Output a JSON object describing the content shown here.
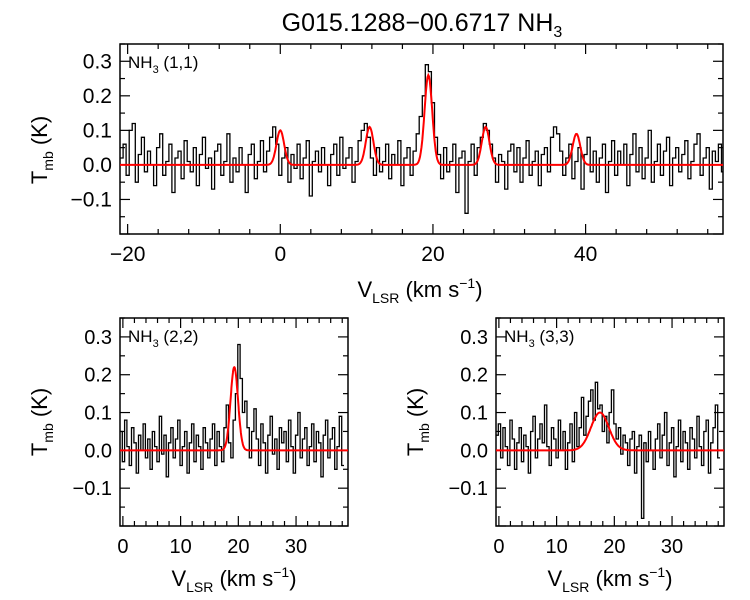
{
  "chart_data": [
    {
      "type": "line",
      "panel": "top",
      "title_main": "G015.1288−00.6717 NH",
      "title_sub": "3",
      "label_main": "NH",
      "label_sub": "3",
      "label_suffix": " (1,1)",
      "xlabel_main": "V",
      "xlabel_sub": "LSR",
      "xlabel_units": " (km s",
      "xlabel_sup": "−1",
      "xlabel_close": ")",
      "ylabel_main": "T",
      "ylabel_sub": "mb",
      "ylabel_units": " (K)",
      "xlim": [
        -21,
        58
      ],
      "ylim": [
        -0.2,
        0.35
      ],
      "xticks": [
        -20,
        0,
        20,
        40
      ],
      "xtick_labels": [
        "−20",
        "0",
        "20",
        "40"
      ],
      "yticks": [
        -0.1,
        0.0,
        0.1,
        0.2,
        0.3
      ],
      "ytick_labels": [
        "−0.1",
        "0.0",
        "0.1",
        "0.2",
        "0.3"
      ],
      "series": [
        {
          "name": "spectrum",
          "color": "#000000",
          "style": "step",
          "x0": -21,
          "dx": 0.4,
          "values": [
            0.02,
            0.06,
            -0.03,
            0.1,
            0.12,
            -0.05,
            0.03,
            0.08,
            -0.02,
            0.04,
            0.0,
            -0.06,
            0.05,
            0.09,
            -0.03,
            0.01,
            0.06,
            -0.08,
            0.02,
            0.04,
            -0.04,
            0.07,
            0.01,
            -0.02,
            0.05,
            -0.06,
            0.03,
            0.08,
            -0.01,
            0.02,
            -0.07,
            0.04,
            0.06,
            -0.03,
            0.01,
            0.09,
            -0.05,
            0.02,
            -0.02,
            0.05,
            0.0,
            -0.08,
            0.03,
            0.06,
            -0.04,
            0.01,
            0.07,
            -0.02,
            0.04,
            0.08,
            0.11,
            0.06,
            -0.03,
            0.02,
            0.05,
            -0.05,
            0.03,
            -0.01,
            0.06,
            -0.04,
            0.02,
            0.07,
            -0.09,
            0.01,
            0.04,
            -0.02,
            0.05,
            0.0,
            -0.06,
            0.03,
            0.06,
            -0.03,
            0.08,
            -0.01,
            0.02,
            0.05,
            -0.05,
            0.01,
            0.07,
            0.1,
            0.12,
            0.08,
            0.02,
            -0.03,
            0.05,
            -0.02,
            0.01,
            0.06,
            -0.04,
            0.03,
            0.0,
            0.07,
            -0.06,
            0.02,
            0.05,
            -0.03,
            0.04,
            0.09,
            0.14,
            0.2,
            0.29,
            0.27,
            0.18,
            0.08,
            0.03,
            -0.04,
            0.05,
            -0.02,
            0.01,
            0.06,
            -0.08,
            0.02,
            0.04,
            -0.14,
            0.01,
            0.06,
            -0.03,
            0.05,
            0.08,
            0.12,
            0.1,
            0.06,
            0.02,
            -0.05,
            0.03,
            0.01,
            -0.07,
            0.04,
            0.06,
            -0.02,
            0.05,
            -0.05,
            0.02,
            0.07,
            -0.03,
            0.01,
            0.04,
            -0.06,
            0.03,
            0.05,
            -0.02,
            0.08,
            0.11,
            0.09,
            0.04,
            -0.03,
            0.02,
            0.06,
            -0.04,
            0.01,
            0.05,
            -0.07,
            0.03,
            0.08,
            -0.02,
            0.04,
            -0.05,
            0.02,
            0.06,
            -0.08,
            0.01,
            0.07,
            -0.03,
            0.04,
            0.0,
            0.06,
            -0.06,
            0.03,
            0.09,
            -0.02,
            0.05,
            -0.04,
            0.02,
            0.1,
            -0.05,
            0.01,
            0.06,
            -0.03,
            0.04,
            0.08,
            -0.06,
            0.02,
            0.05,
            -0.02,
            0.03,
            0.07,
            -0.04,
            0.01,
            0.06,
            0.09,
            -0.03,
            0.02,
            0.05,
            -0.07,
            0.04,
            0.01,
            0.06,
            -0.02
          ]
        },
        {
          "name": "gaussian fit",
          "color": "#ff0000",
          "style": "line",
          "peaks": [
            {
              "center": 0.0,
              "amp": 0.1,
              "sigma": 0.5
            },
            {
              "center": 11.7,
              "amp": 0.11,
              "sigma": 0.5
            },
            {
              "center": 19.4,
              "amp": 0.26,
              "sigma": 0.5
            },
            {
              "center": 26.9,
              "amp": 0.11,
              "sigma": 0.5
            },
            {
              "center": 38.8,
              "amp": 0.09,
              "sigma": 0.5
            }
          ]
        }
      ]
    },
    {
      "type": "line",
      "panel": "bottom-left",
      "label_main": "NH",
      "label_sub": "3",
      "label_suffix": " (2,2)",
      "xlabel_main": "V",
      "xlabel_sub": "LSR",
      "xlabel_units": " (km s",
      "xlabel_sup": "−1",
      "xlabel_close": ")",
      "ylabel_main": "T",
      "ylabel_sub": "mb",
      "ylabel_units": " (K)",
      "xlim": [
        -0.5,
        39
      ],
      "ylim": [
        -0.2,
        0.35
      ],
      "xticks": [
        0,
        10,
        20,
        30
      ],
      "xtick_labels": [
        "0",
        "10",
        "20",
        "30"
      ],
      "yticks": [
        -0.1,
        0.0,
        0.1,
        0.2,
        0.3
      ],
      "ytick_labels": [
        "−0.1",
        "0.0",
        "0.1",
        "0.2",
        "0.3"
      ],
      "series": [
        {
          "name": "spectrum",
          "color": "#000000",
          "style": "step",
          "x0": -0.5,
          "dx": 0.4,
          "values": [
            0.05,
            -0.03,
            0.08,
            0.01,
            -0.04,
            0.06,
            0.02,
            -0.06,
            0.04,
            0.0,
            0.07,
            -0.02,
            0.03,
            -0.05,
            0.05,
            0.01,
            -0.03,
            0.09,
            -0.01,
            0.04,
            -0.07,
            0.02,
            0.06,
            -0.02,
            0.03,
            0.08,
            -0.04,
            0.01,
            0.05,
            -0.06,
            0.02,
            0.07,
            -0.03,
            0.04,
            0.01,
            -0.05,
            0.06,
            0.02,
            -0.02,
            0.03,
            0.07,
            -0.04,
            0.05,
            0.01,
            -0.03,
            0.06,
            0.12,
            0.02,
            -0.02,
            0.08,
            0.15,
            0.28,
            0.19,
            0.1,
            0.13,
            0.06,
            -0.02,
            0.05,
            0.11,
            0.03,
            -0.04,
            0.07,
            0.02,
            -0.06,
            0.04,
            0.09,
            -0.01,
            0.03,
            -0.05,
            0.06,
            0.02,
            0.05,
            -0.03,
            0.08,
            0.01,
            -0.06,
            0.04,
            0.1,
            -0.02,
            0.03,
            0.06,
            -0.04,
            0.01,
            0.07,
            -0.03,
            0.05,
            0.02,
            -0.07,
            0.04,
            0.08,
            -0.02,
            0.03,
            0.06,
            -0.05,
            0.01,
            0.09,
            -0.04
          ]
        },
        {
          "name": "gaussian fit",
          "color": "#ff0000",
          "style": "line",
          "peaks": [
            {
              "center": 19.3,
              "amp": 0.22,
              "sigma": 0.65
            }
          ]
        }
      ]
    },
    {
      "type": "line",
      "panel": "bottom-right",
      "label_main": "NH",
      "label_sub": "3",
      "label_suffix": " (3,3)",
      "xlabel_main": "V",
      "xlabel_sub": "LSR",
      "xlabel_units": " (km s",
      "xlabel_sup": "−1",
      "xlabel_close": ")",
      "ylabel_main": "T",
      "ylabel_sub": "mb",
      "ylabel_units": " (K)",
      "xlim": [
        -0.5,
        39
      ],
      "ylim": [
        -0.2,
        0.35
      ],
      "xticks": [
        0,
        10,
        20,
        30
      ],
      "xtick_labels": [
        "0",
        "10",
        "20",
        "30"
      ],
      "yticks": [
        -0.1,
        0.0,
        0.1,
        0.2,
        0.3
      ],
      "ytick_labels": [
        "−0.1",
        "0.0",
        "0.1",
        "0.2",
        "0.3"
      ],
      "series": [
        {
          "name": "spectrum",
          "color": "#000000",
          "style": "step",
          "x0": -0.5,
          "dx": 0.4,
          "values": [
            0.04,
            0.07,
            -0.02,
            0.06,
            0.01,
            -0.04,
            0.08,
            0.03,
            -0.05,
            0.02,
            0.06,
            -0.03,
            0.04,
            0.01,
            -0.06,
            0.05,
            0.09,
            -0.02,
            0.03,
            0.07,
            0.02,
            0.12,
            0.01,
            -0.04,
            0.06,
            0.03,
            -0.02,
            0.08,
            0.0,
            0.05,
            -0.05,
            0.02,
            0.07,
            -0.03,
            0.1,
            0.01,
            0.06,
            0.14,
            0.04,
            0.09,
            0.13,
            0.16,
            0.08,
            0.18,
            0.11,
            0.12,
            0.05,
            0.09,
            0.02,
            0.1,
            0.16,
            0.07,
            0.03,
            0.06,
            -0.01,
            0.04,
            0.02,
            -0.04,
            0.03,
            0.05,
            -0.06,
            0.01,
            0.04,
            -0.18,
            0.02,
            -0.03,
            0.05,
            0.0,
            -0.05,
            0.03,
            0.07,
            -0.02,
            0.04,
            0.1,
            -0.04,
            0.02,
            0.06,
            -0.07,
            0.01,
            0.08,
            -0.03,
            0.05,
            0.02,
            -0.05,
            0.06,
            0.03,
            -0.02,
            0.09,
            0.01,
            -0.04,
            0.05,
            0.08,
            -0.06,
            0.02,
            0.06,
            0.12,
            -0.02
          ]
        },
        {
          "name": "gaussian fit",
          "color": "#ff0000",
          "style": "line",
          "peaks": [
            {
              "center": 17.5,
              "amp": 0.1,
              "sigma": 1.55
            }
          ]
        }
      ]
    }
  ]
}
